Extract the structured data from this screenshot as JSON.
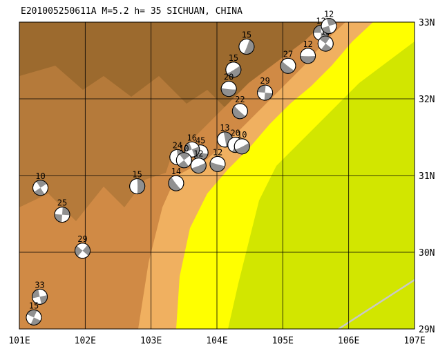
{
  "header": {
    "title": "E201005250611A M=5.2 h= 35 SICHUAN, CHINA"
  },
  "map": {
    "lon_range": [
      101,
      107
    ],
    "lat_range": [
      29,
      33
    ],
    "lon_ticks": [
      "101E",
      "102E",
      "103E",
      "104E",
      "105E",
      "106E",
      "107E"
    ],
    "lat_ticks": [
      "29N",
      "30N",
      "31N",
      "32N",
      "33N"
    ],
    "grid": true,
    "colors": {
      "high_mountain": "#9c6a2e",
      "mountain": "#b57a3a",
      "upland": "#d08a45",
      "foothill": "#f0b060",
      "lowland": "#ffff00",
      "basin": "#d2e600",
      "river": "#c8c8c8"
    },
    "events": [
      {
        "depth": "12",
        "lon": 105.58,
        "lat": 32.86,
        "type": "strike-slip"
      },
      {
        "depth": "15",
        "lon": 105.65,
        "lat": 32.72,
        "type": "strike-slip"
      },
      {
        "depth": "12",
        "lon": 105.7,
        "lat": 32.95,
        "type": "strike-slip"
      },
      {
        "depth": "12",
        "lon": 105.38,
        "lat": 32.56,
        "type": "thrust"
      },
      {
        "depth": "27",
        "lon": 105.08,
        "lat": 32.43,
        "type": "thrust"
      },
      {
        "depth": "29",
        "lon": 104.73,
        "lat": 32.08,
        "type": "strike-slip"
      },
      {
        "depth": "15",
        "lon": 104.45,
        "lat": 32.68,
        "type": "thrust"
      },
      {
        "depth": "15",
        "lon": 104.25,
        "lat": 32.38,
        "type": "thrust"
      },
      {
        "depth": "20",
        "lon": 104.18,
        "lat": 32.13,
        "type": "thrust"
      },
      {
        "depth": "22",
        "lon": 104.35,
        "lat": 31.84,
        "type": "thrust"
      },
      {
        "depth": "13",
        "lon": 104.12,
        "lat": 31.47,
        "type": "thrust"
      },
      {
        "depth": "20",
        "lon": 104.28,
        "lat": 31.4,
        "type": "thrust"
      },
      {
        "depth": "10",
        "lon": 104.38,
        "lat": 31.38,
        "type": "thrust"
      },
      {
        "depth": "45",
        "lon": 103.75,
        "lat": 31.3,
        "type": "thrust"
      },
      {
        "depth": "16",
        "lon": 103.62,
        "lat": 31.34,
        "type": "strike-slip"
      },
      {
        "depth": "24",
        "lon": 103.4,
        "lat": 31.24,
        "type": "thrust"
      },
      {
        "depth": "10",
        "lon": 103.5,
        "lat": 31.2,
        "type": "strike-slip"
      },
      {
        "depth": "12",
        "lon": 103.72,
        "lat": 31.13,
        "type": "thrust"
      },
      {
        "depth": "12",
        "lon": 104.01,
        "lat": 31.15,
        "type": "thrust"
      },
      {
        "depth": "14",
        "lon": 103.38,
        "lat": 30.9,
        "type": "thrust"
      },
      {
        "depth": "15",
        "lon": 102.79,
        "lat": 30.86,
        "type": "thrust"
      },
      {
        "depth": "10",
        "lon": 101.32,
        "lat": 30.84,
        "type": "strike-slip"
      },
      {
        "depth": "25",
        "lon": 101.65,
        "lat": 30.49,
        "type": "strike-slip"
      },
      {
        "depth": "29",
        "lon": 101.96,
        "lat": 30.02,
        "type": "strike-slip"
      },
      {
        "depth": "33",
        "lon": 101.31,
        "lat": 29.42,
        "type": "strike-slip"
      },
      {
        "depth": "15",
        "lon": 101.22,
        "lat": 29.15,
        "type": "strike-slip"
      }
    ],
    "main_event_label": "E201005250611A"
  }
}
